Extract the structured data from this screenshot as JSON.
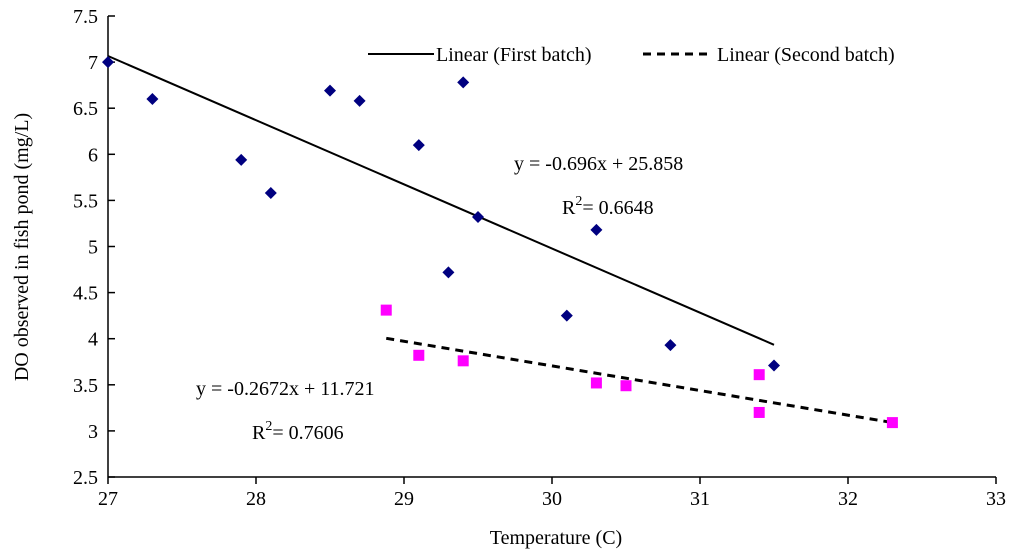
{
  "chart_data": {
    "type": "scatter",
    "title": "",
    "xlabel": "Temperature (C)",
    "ylabel": "DO observed in fish pond (mg/L)",
    "xlim": [
      27,
      33
    ],
    "ylim": [
      2.5,
      7.5
    ],
    "xticks": [
      "27",
      "28",
      "29",
      "30",
      "31",
      "32",
      "33"
    ],
    "yticks": [
      "2.5",
      "3",
      "3.5",
      "4",
      "4.5",
      "5",
      "5.5",
      "6",
      "6.5",
      "7",
      "7.5"
    ],
    "grid": false,
    "legend_position": "top-right",
    "series": [
      {
        "color": "#000080",
        "marker": "diamond",
        "points": [
          [
            27.0,
            7.0
          ],
          [
            27.3,
            6.6
          ],
          [
            27.9,
            5.94
          ],
          [
            28.1,
            5.58
          ],
          [
            28.5,
            6.69
          ],
          [
            28.7,
            6.58
          ],
          [
            29.1,
            6.1
          ],
          [
            29.3,
            4.72
          ],
          [
            29.4,
            6.78
          ],
          [
            29.5,
            5.32
          ],
          [
            30.1,
            4.25
          ],
          [
            30.3,
            5.18
          ],
          [
            30.8,
            3.93
          ],
          [
            31.5,
            3.71
          ]
        ]
      },
      {
        "color": "#ff00ff",
        "marker": "square",
        "points": [
          [
            28.88,
            4.31
          ],
          [
            29.1,
            3.82
          ],
          [
            29.4,
            3.76
          ],
          [
            30.3,
            3.52
          ],
          [
            30.5,
            3.49
          ],
          [
            31.4,
            3.61
          ],
          [
            31.4,
            3.2
          ],
          [
            32.3,
            3.09
          ]
        ]
      }
    ],
    "trendlines": [
      {
        "legend": "Linear (First batch)",
        "style": "solid",
        "slope": -0.696,
        "intercept": 25.858,
        "x_range": [
          27.0,
          31.5
        ],
        "equation": "y = -0.696x + 25.858",
        "r2_label": "R",
        "r2_sup": "2",
        "r2_value": "= 0.6648"
      },
      {
        "legend": "Linear (Second batch)",
        "style": "dashed",
        "slope": -0.2672,
        "intercept": 11.721,
        "x_range": [
          28.88,
          32.3
        ],
        "equation": "y = -0.2672x + 11.721",
        "r2_label": "R",
        "r2_sup": "2",
        "r2_value": "= 0.7606"
      }
    ]
  }
}
